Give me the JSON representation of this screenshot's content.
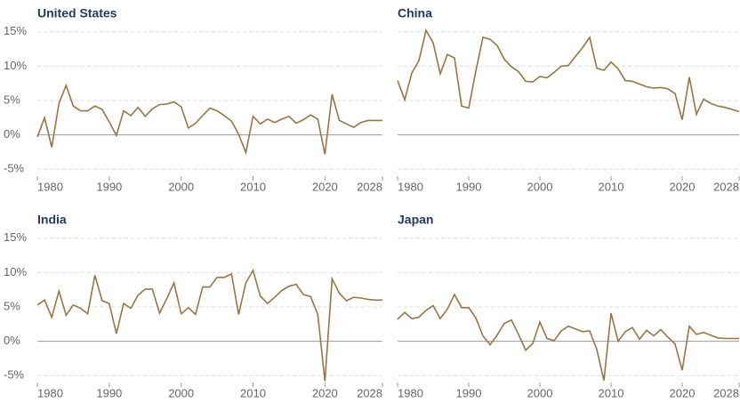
{
  "chart_data": [
    {
      "type": "line",
      "title": "United States",
      "x": [
        1980,
        1981,
        1982,
        1983,
        1984,
        1985,
        1986,
        1987,
        1988,
        1989,
        1990,
        1991,
        1992,
        1993,
        1994,
        1995,
        1996,
        1997,
        1998,
        1999,
        2000,
        2001,
        2002,
        2003,
        2004,
        2005,
        2006,
        2007,
        2008,
        2009,
        2010,
        2011,
        2012,
        2013,
        2014,
        2015,
        2016,
        2017,
        2018,
        2019,
        2020,
        2021,
        2022,
        2023,
        2024,
        2025,
        2026,
        2027,
        2028
      ],
      "series": [
        {
          "color": "#9a7443",
          "values": [
            -0.3,
            2.5,
            -1.8,
            4.6,
            7.2,
            4.2,
            3.5,
            3.5,
            4.2,
            3.7,
            1.9,
            -0.1,
            3.5,
            2.8,
            4.0,
            2.7,
            3.8,
            4.4,
            4.5,
            4.8,
            4.1,
            1.0,
            1.7,
            2.8,
            3.9,
            3.5,
            2.8,
            2.0,
            0.1,
            -2.6,
            2.7,
            1.6,
            2.3,
            1.8,
            2.3,
            2.7,
            1.7,
            2.2,
            2.9,
            2.3,
            -2.8,
            5.9,
            2.1,
            1.6,
            1.1,
            1.8,
            2.1,
            2.1,
            2.1
          ]
        }
      ],
      "xlim": [
        1980,
        2028
      ],
      "xticks": [
        1980,
        1990,
        2000,
        2010,
        2020,
        2028
      ],
      "ylim": [
        -6,
        16
      ],
      "yticks": [
        {
          "value": -5,
          "label": "-5%"
        },
        {
          "value": 0,
          "label": "0%"
        },
        {
          "value": 5,
          "label": "5%"
        },
        {
          "value": 10,
          "label": "10%"
        },
        {
          "value": 15,
          "label": "15%"
        }
      ],
      "grid": true
    },
    {
      "type": "line",
      "title": "China",
      "x": [
        1980,
        1981,
        1982,
        1983,
        1984,
        1985,
        1986,
        1987,
        1988,
        1989,
        1990,
        1991,
        1992,
        1993,
        1994,
        1995,
        1996,
        1997,
        1998,
        1999,
        2000,
        2001,
        2002,
        2003,
        2004,
        2005,
        2006,
        2007,
        2008,
        2009,
        2010,
        2011,
        2012,
        2013,
        2014,
        2015,
        2016,
        2017,
        2018,
        2019,
        2020,
        2021,
        2022,
        2023,
        2024,
        2025,
        2026,
        2027,
        2028
      ],
      "series": [
        {
          "color": "#9a7443",
          "values": [
            7.9,
            5.1,
            9.0,
            10.8,
            15.2,
            13.4,
            8.9,
            11.7,
            11.2,
            4.2,
            3.9,
            9.3,
            14.2,
            13.9,
            13.0,
            11.0,
            9.9,
            9.2,
            7.8,
            7.7,
            8.5,
            8.3,
            9.1,
            10.0,
            10.1,
            11.4,
            12.7,
            14.2,
            9.7,
            9.4,
            10.6,
            9.6,
            7.9,
            7.8,
            7.4,
            7.0,
            6.8,
            6.9,
            6.7,
            6.0,
            2.2,
            8.4,
            3.0,
            5.2,
            4.6,
            4.2,
            4.0,
            3.7,
            3.4
          ]
        }
      ],
      "xlim": [
        1980,
        2028
      ],
      "xticks": [
        1980,
        1990,
        2000,
        2010,
        2020,
        2028
      ],
      "ylim": [
        -6,
        16
      ],
      "yticks": [
        -5,
        0,
        5,
        10,
        15
      ],
      "grid": true
    },
    {
      "type": "line",
      "title": "India",
      "x": [
        1980,
        1981,
        1982,
        1983,
        1984,
        1985,
        1986,
        1987,
        1988,
        1989,
        1990,
        1991,
        1992,
        1993,
        1994,
        1995,
        1996,
        1997,
        1998,
        1999,
        2000,
        2001,
        2002,
        2003,
        2004,
        2005,
        2006,
        2007,
        2008,
        2009,
        2010,
        2011,
        2012,
        2013,
        2014,
        2015,
        2016,
        2017,
        2018,
        2019,
        2020,
        2021,
        2022,
        2023,
        2024,
        2025,
        2026,
        2027,
        2028
      ],
      "series": [
        {
          "color": "#9a7443",
          "values": [
            5.3,
            6.0,
            3.5,
            7.3,
            3.8,
            5.3,
            4.8,
            4.0,
            9.6,
            5.9,
            5.5,
            1.1,
            5.5,
            4.8,
            6.7,
            7.6,
            7.6,
            4.1,
            6.2,
            8.5,
            4.0,
            4.9,
            3.9,
            7.9,
            7.9,
            9.3,
            9.3,
            9.8,
            3.9,
            8.5,
            10.3,
            6.6,
            5.5,
            6.4,
            7.4,
            8.0,
            8.3,
            6.8,
            6.5,
            3.9,
            -5.8,
            9.1,
            7.0,
            5.9,
            6.4,
            6.3,
            6.1,
            6.0,
            6.0
          ]
        }
      ],
      "xlim": [
        1980,
        2028
      ],
      "xticks": [
        1980,
        1990,
        2000,
        2010,
        2020,
        2028
      ],
      "ylim": [
        -6,
        16
      ],
      "yticks": [
        {
          "value": -5,
          "label": "-5%"
        },
        {
          "value": 0,
          "label": "0%"
        },
        {
          "value": 5,
          "label": "5%"
        },
        {
          "value": 10,
          "label": "10%"
        },
        {
          "value": 15,
          "label": "15%"
        }
      ],
      "grid": true
    },
    {
      "type": "line",
      "title": "Japan",
      "x": [
        1980,
        1981,
        1982,
        1983,
        1984,
        1985,
        1986,
        1987,
        1988,
        1989,
        1990,
        1991,
        1992,
        1993,
        1994,
        1995,
        1996,
        1997,
        1998,
        1999,
        2000,
        2001,
        2002,
        2003,
        2004,
        2005,
        2006,
        2007,
        2008,
        2009,
        2010,
        2011,
        2012,
        2013,
        2014,
        2015,
        2016,
        2017,
        2018,
        2019,
        2020,
        2021,
        2022,
        2023,
        2024,
        2025,
        2026,
        2027,
        2028
      ],
      "series": [
        {
          "color": "#9a7443",
          "values": [
            3.2,
            4.2,
            3.3,
            3.5,
            4.5,
            5.2,
            3.3,
            4.7,
            6.8,
            4.9,
            4.9,
            3.4,
            0.8,
            -0.5,
            0.9,
            2.6,
            3.1,
            1.0,
            -1.3,
            -0.3,
            2.8,
            0.4,
            0.1,
            1.5,
            2.2,
            1.8,
            1.4,
            1.5,
            -1.2,
            -5.7,
            4.1,
            0.0,
            1.4,
            2.0,
            0.3,
            1.6,
            0.8,
            1.7,
            0.6,
            -0.4,
            -4.2,
            2.2,
            1.0,
            1.3,
            0.9,
            0.5,
            0.4,
            0.4,
            0.4
          ]
        }
      ],
      "xlim": [
        1980,
        2028
      ],
      "xticks": [
        1980,
        1990,
        2000,
        2010,
        2020,
        2028
      ],
      "ylim": [
        -6,
        16
      ],
      "yticks": [
        -5,
        0,
        5,
        10,
        15
      ],
      "grid": true
    }
  ]
}
